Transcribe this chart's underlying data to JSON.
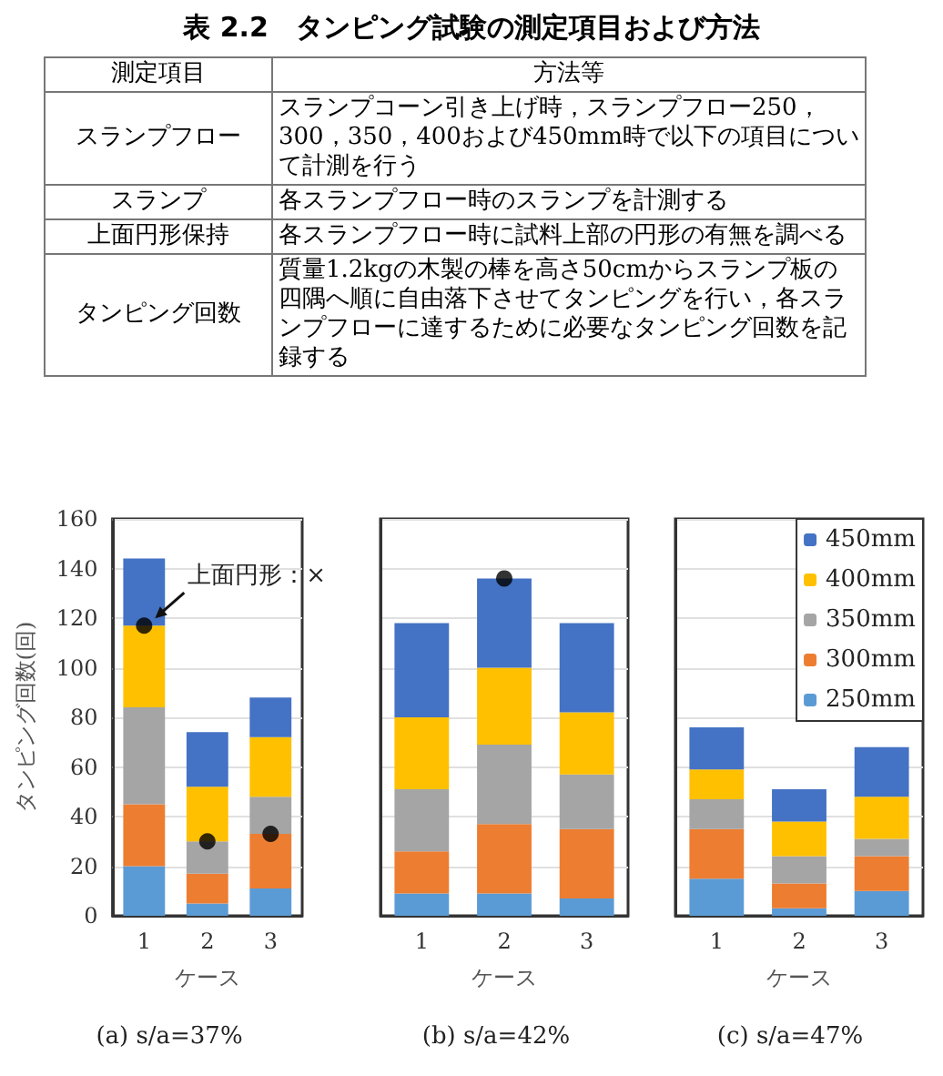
{
  "chart_data": [
    {
      "type": "other",
      "title": "表 2.2　タンピング試験の測定項目および方法",
      "annotations": [
        "測定項目",
        "方法等",
        "スランプフロー",
        "スランプコーン引き上げ時，スランプフロー250，300，350，400および450mm時で以下の項目について計測を行う",
        "スランプ",
        "各スランプフロー時のスランプを計測する",
        "上面円形保持",
        "各スランプフロー時に試料上部の円形の有無を調べる",
        "タンピング回数",
        "質量1.2kgの木製の棒を高さ50cmからスランプ板の四隅へ順に自由落下させてタンピングを行い，各スランプフローに達するために必要なタンピング回数を記録する"
      ]
    },
    {
      "type": "bar",
      "title": "(a) s/a=37%",
      "xlabel": "ケース",
      "ylabel": "タンピング回数(回)",
      "categories": [
        "1",
        "2",
        "3"
      ],
      "stacked": true,
      "ylim": [
        0,
        160
      ],
      "yticks": [
        0,
        20,
        40,
        60,
        80,
        100,
        120,
        140,
        160
      ],
      "grid": "y",
      "marker": "circle",
      "annotations": [
        {
          "text": "上面円形：×",
          "x": "1",
          "y": 117
        }
      ],
      "series": [
        {
          "color": "#5b9bd5",
          "values": [
            20,
            5,
            11
          ]
        },
        {
          "color": "#ed7d31",
          "values": [
            25,
            12,
            22
          ]
        },
        {
          "color": "#a5a5a5",
          "values": [
            39,
            13,
            15
          ]
        },
        {
          "color": "#ffc000",
          "values": [
            33,
            22,
            24
          ]
        },
        {
          "color": "#4472c4",
          "values": [
            27,
            22,
            16
          ]
        },
        {
          "type": "scatter",
          "color": "#000000",
          "x": [
            "1",
            "2",
            "3"
          ],
          "values": [
            117,
            30,
            33
          ]
        }
      ]
    },
    {
      "type": "bar",
      "title": "(b) s/a=42%",
      "xlabel": "ケース",
      "categories": [
        "1",
        "2",
        "3"
      ],
      "stacked": true,
      "ylim": [
        0,
        160
      ],
      "yticks": [
        0,
        20,
        40,
        60,
        80,
        100,
        120,
        140,
        160
      ],
      "grid": "y",
      "marker": "circle",
      "tick_labels": "x",
      "series": [
        {
          "color": "#5b9bd5",
          "values": [
            9,
            9,
            7
          ]
        },
        {
          "color": "#ed7d31",
          "values": [
            17,
            28,
            28
          ]
        },
        {
          "color": "#a5a5a5",
          "values": [
            25,
            32,
            22
          ]
        },
        {
          "color": "#ffc000",
          "values": [
            29,
            31,
            25
          ]
        },
        {
          "color": "#4472c4",
          "values": [
            38,
            36,
            36
          ]
        },
        {
          "type": "scatter",
          "color": "#000000",
          "x": [
            "2"
          ],
          "values": [
            136
          ]
        }
      ]
    },
    {
      "type": "bar",
      "title": "(c) s/a=47%",
      "xlabel": "ケース",
      "categories": [
        "1",
        "2",
        "3"
      ],
      "stacked": true,
      "ylim": [
        0,
        160
      ],
      "yticks": [
        0,
        20,
        40,
        60,
        80,
        100,
        120,
        140,
        160
      ],
      "grid": "y",
      "tick_labels": "x",
      "legend": "top right",
      "series": [
        {
          "name": "250mm",
          "color": "#5b9bd5",
          "values": [
            15,
            3,
            10
          ]
        },
        {
          "name": "300mm",
          "color": "#ed7d31",
          "values": [
            20,
            10,
            14
          ]
        },
        {
          "name": "350mm",
          "color": "#a5a5a5",
          "values": [
            12,
            11,
            7
          ]
        },
        {
          "name": "400mm",
          "color": "#ffc000",
          "values": [
            12,
            14,
            17
          ]
        },
        {
          "name": "450mm",
          "color": "#4472c4",
          "values": [
            17,
            13,
            20
          ]
        }
      ]
    }
  ]
}
